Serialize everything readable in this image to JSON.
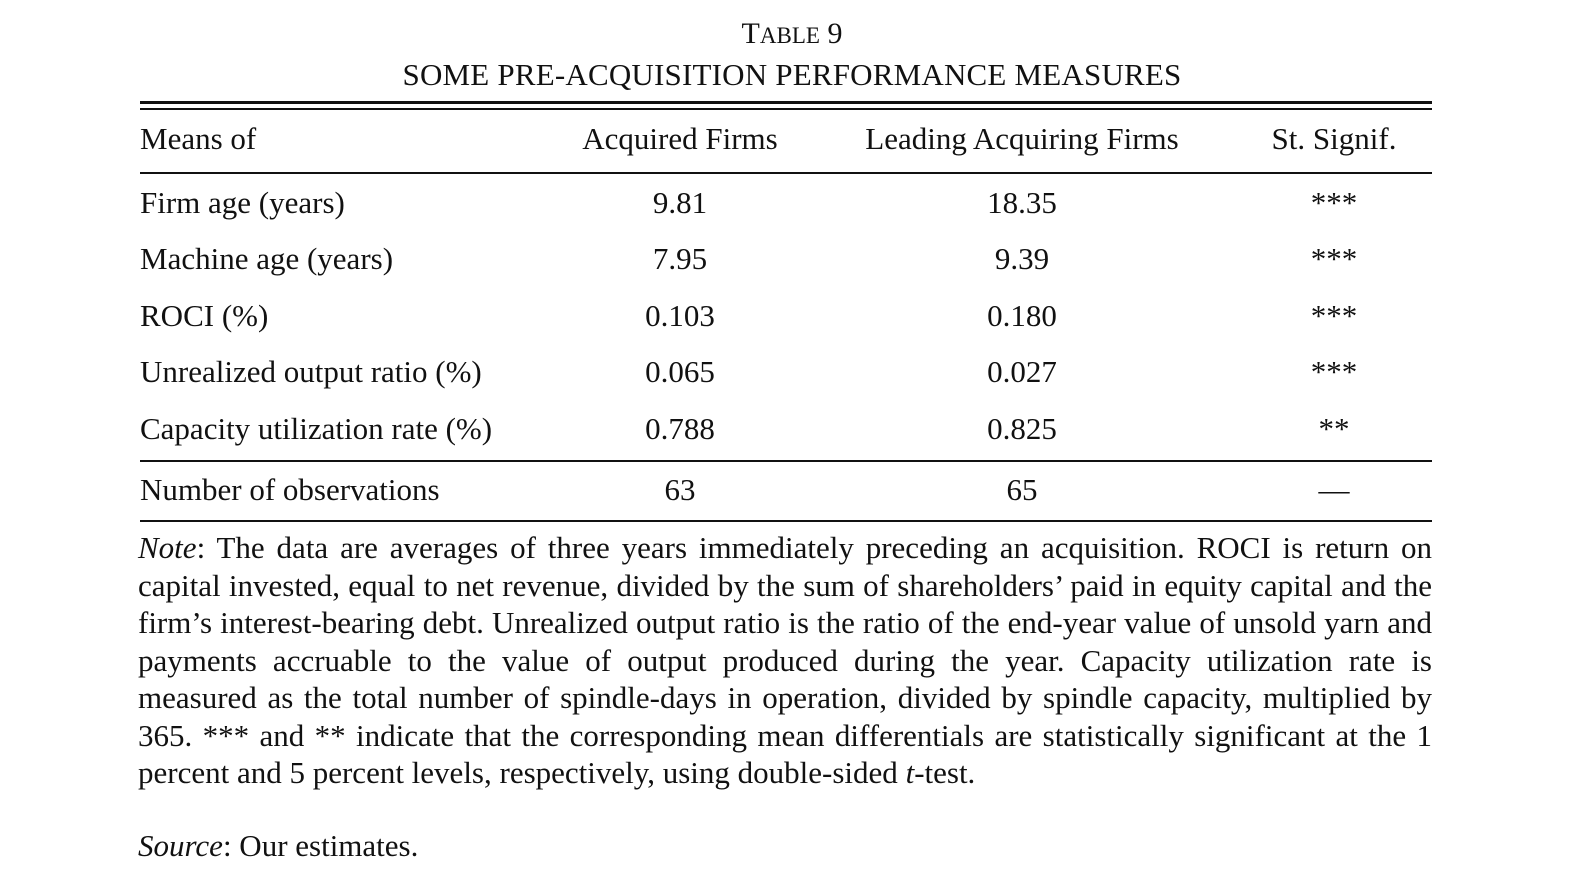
{
  "table": {
    "label_prefix": "T",
    "label_rest": "able",
    "label_number": "9",
    "title": "SOME PRE-ACQUISITION PERFORMANCE MEASURES",
    "columns": [
      "Means of",
      "Acquired Firms",
      "Leading Acquiring Firms",
      "St. Signif."
    ],
    "rows": [
      {
        "label": "Firm age (years)",
        "acquired": "9.81",
        "acquiring": "18.35",
        "signif": "***"
      },
      {
        "label": "Machine age (years)",
        "acquired": "7.95",
        "acquiring": "9.39",
        "signif": "***"
      },
      {
        "label": "ROCI (%)",
        "acquired": "0.103",
        "acquiring": "0.180",
        "signif": "***"
      },
      {
        "label": "Unrealized output ratio (%)",
        "acquired": "0.065",
        "acquiring": "0.027",
        "signif": "***"
      },
      {
        "label": "Capacity utilization rate (%)",
        "acquired": "0.788",
        "acquiring": "0.825",
        "signif": "**"
      }
    ],
    "observations": {
      "label": "Number of observations",
      "acquired": "63",
      "acquiring": "65",
      "signif": "—"
    }
  },
  "note": {
    "label": "Note",
    "text": ": The data are averages of three years immediately preceding an acquisition. ROCI is return on capital invested, equal to net revenue, divided by the sum of shareholders’ paid in equity capital and the firm’s interest-bearing debt. Unrealized output ratio is the ratio of the end-year value of unsold yarn and payments accruable to the value of output produced during the year. Capacity utilization rate is measured as the total number of spindle-days in operation, divided by spindle capacity, multiplied by 365. *** and ** indicate that the corresponding mean differentials are statistically significant at the 1 percent and 5 percent levels, respectively, using double-sided ",
    "t_italic": "t",
    "t_rest": "-test."
  },
  "source": {
    "label": "Source",
    "text": ": Our estimates."
  }
}
